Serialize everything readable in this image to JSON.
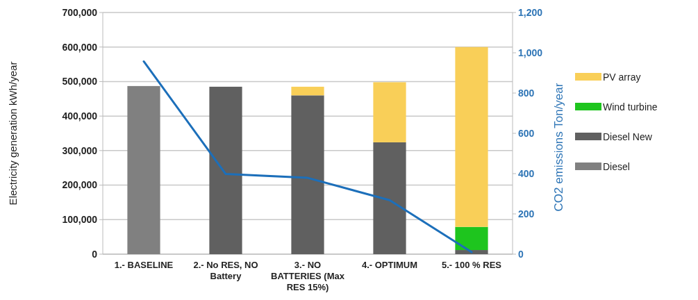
{
  "chart_data": {
    "type": "bar",
    "stacked": true,
    "categories": [
      "1.- BASELINE",
      "2.- No RES, NO Battery",
      "3.- NO BATTERIES (Max RES 15%)",
      "4.- OPTIMUM",
      "5.- 100 % RES"
    ],
    "ylabel": "Electricity generation kWh/year",
    "y2label": "CO2 emissions Ton/year",
    "ylim": [
      0,
      700000
    ],
    "yticks": [
      {
        "value": 0,
        "label": "0"
      },
      {
        "value": 100000,
        "label": "100,000"
      },
      {
        "value": 200000,
        "label": "200,000"
      },
      {
        "value": 300000,
        "label": "300,000"
      },
      {
        "value": 400000,
        "label": "400,000"
      },
      {
        "value": 500000,
        "label": "500,000"
      },
      {
        "value": 600000,
        "label": "600,000"
      },
      {
        "value": 700000,
        "label": "700,000"
      }
    ],
    "y2lim": [
      0,
      1200
    ],
    "y2ticks": [
      0,
      200,
      400,
      600,
      800,
      {
        "value": 1000,
        "label": "1,000"
      },
      {
        "value": 1200,
        "label": "1,200"
      }
    ],
    "grid": "y",
    "legend": "right",
    "series": [
      {
        "name": "Diesel",
        "color": "#808080",
        "values": [
          487000,
          0,
          0,
          0,
          0
        ]
      },
      {
        "name": "Diesel New",
        "color": "#606060",
        "values": [
          0,
          485000,
          460000,
          324000,
          12000
        ]
      },
      {
        "name": "Wind turbine",
        "color": "#1ec51e",
        "values": [
          0,
          0,
          0,
          0,
          67000
        ]
      },
      {
        "name": "PV array",
        "color": "#f9cf58",
        "values": [
          0,
          0,
          25000,
          174000,
          521000
        ]
      },
      {
        "type": "line",
        "axis": "y2",
        "color": "#1c6fba",
        "values": [
          957,
          398,
          379,
          268,
          10
        ]
      }
    ]
  }
}
